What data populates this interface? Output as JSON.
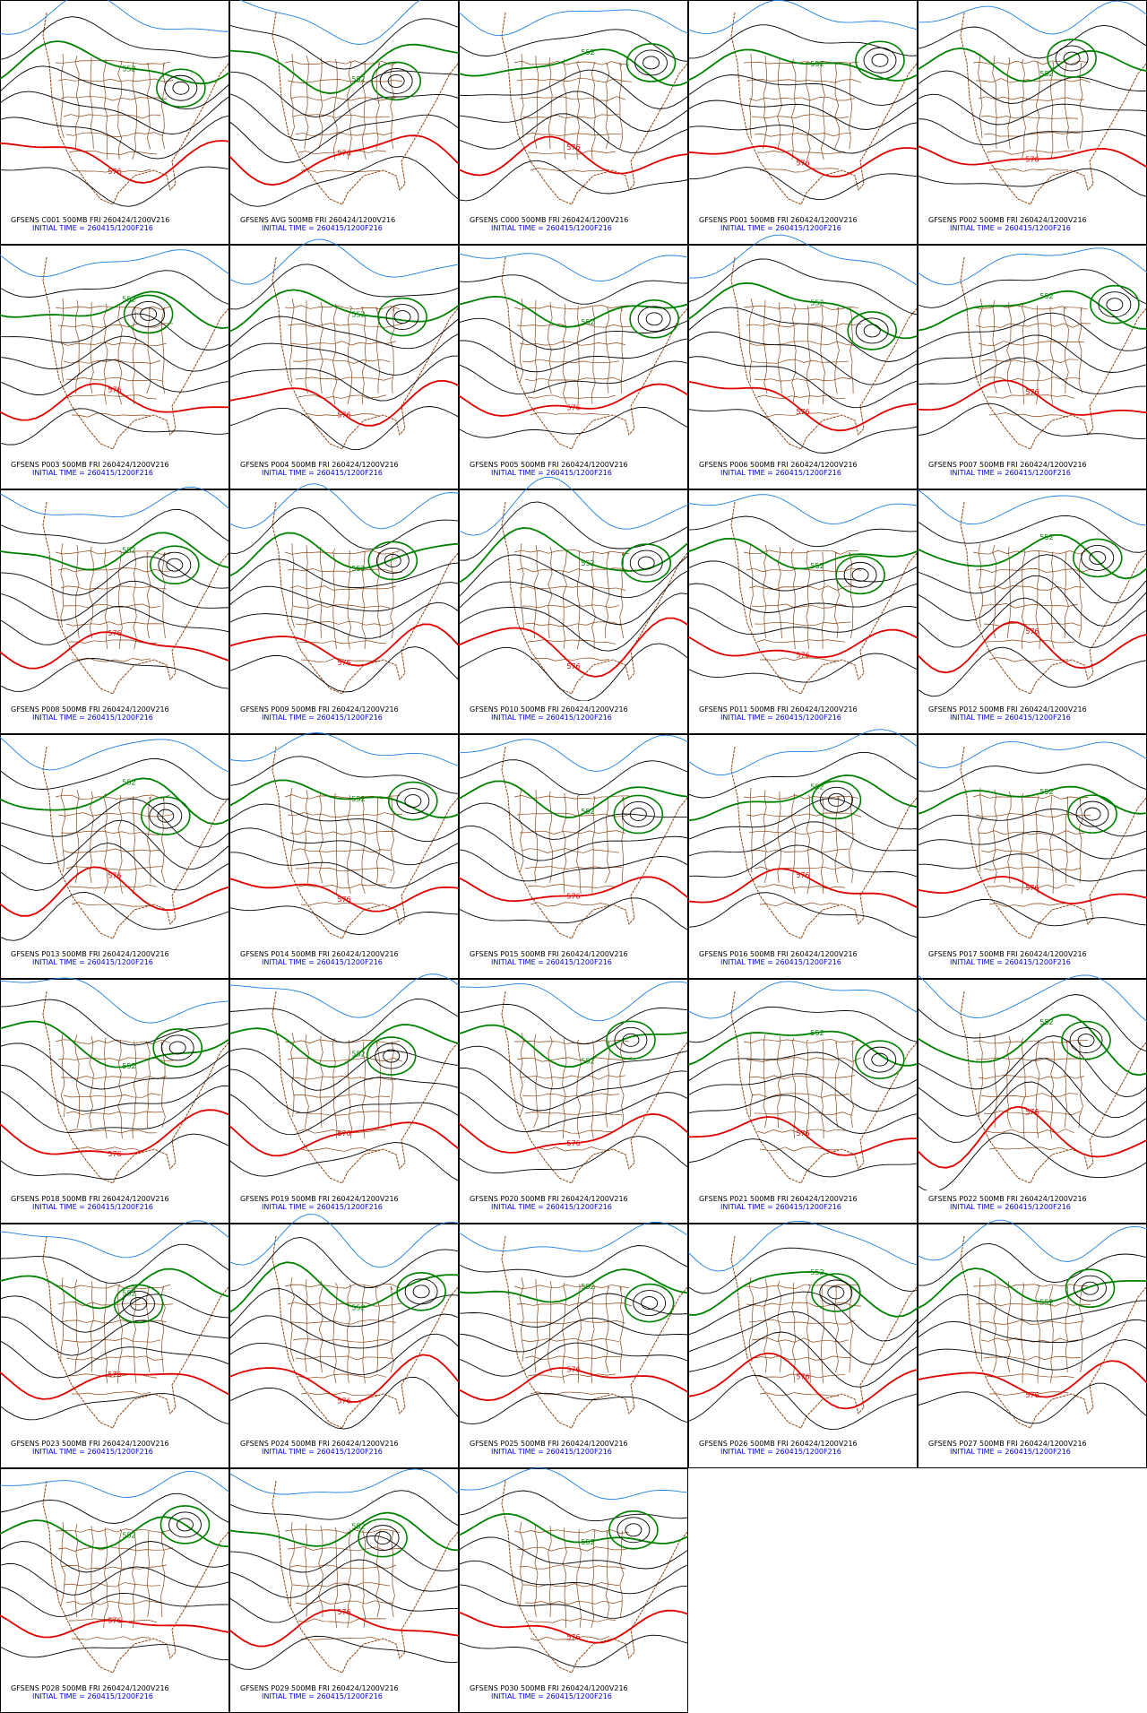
{
  "panels": [
    {
      "caption": "GFSENS C001 500MB FRI 260424/1200V216",
      "init": "INITIAL TIME = 260415/1200F216",
      "labels": [
        "552",
        "576"
      ]
    },
    {
      "caption": "GFSENS AVG 500MB FRI 260424/1200V216",
      "init": "INITIAL TIME = 260415/1200F216",
      "labels": [
        "552",
        "576"
      ]
    },
    {
      "caption": "GFSENS C000 500MB FRI 260424/1200V216",
      "init": "INITIAL TIME = 260415/1200F216",
      "labels": [
        "552",
        "576"
      ]
    },
    {
      "caption": "GFSENS P001 500MB FRI 260424/1200V216",
      "init": "INITIAL TIME = 260415/1200F216",
      "labels": [
        "552",
        "576"
      ]
    },
    {
      "caption": "GFSENS P002 500MB FRI 260424/1200V216",
      "init": "INITIAL TIME = 260415/1200F216",
      "labels": [
        "552",
        "576"
      ]
    },
    {
      "caption": "GFSENS P003 500MB FRI 260424/1200V216",
      "init": "INITIAL TIME = 260415/1200F216",
      "labels": [
        "552",
        "576"
      ]
    },
    {
      "caption": "GFSENS P004 500MB FRI 260424/1200V216",
      "init": "INITIAL TIME = 260415/1200F216",
      "labels": [
        "552",
        "576"
      ]
    },
    {
      "caption": "GFSENS P005 500MB FRI 260424/1200V216",
      "init": "INITIAL TIME = 260415/1200F216",
      "labels": [
        "552",
        "576"
      ]
    },
    {
      "caption": "GFSENS P006 500MB FRI 260424/1200V216",
      "init": "INITIAL TIME = 260415/1200F216",
      "labels": [
        "552",
        "576"
      ]
    },
    {
      "caption": "GFSENS P007 500MB FRI 260424/1200V216",
      "init": "INITIAL TIME = 260415/1200F216",
      "labels": [
        "552",
        "576"
      ]
    },
    {
      "caption": "GFSENS P008 500MB FRI 260424/1200V216",
      "init": "INITIAL TIME = 260415/1200F216",
      "labels": [
        "552",
        "576"
      ]
    },
    {
      "caption": "GFSENS P009 500MB FRI 260424/1200V216",
      "init": "INITIAL TIME = 260415/1200F216",
      "labels": [
        "552",
        "576"
      ]
    },
    {
      "caption": "GFSENS P010 500MB FRI 260424/1200V216",
      "init": "INITIAL TIME = 260415/1200F216",
      "labels": [
        "552",
        "576"
      ]
    },
    {
      "caption": "GFSENS P011 500MB FRI 260424/1200V216",
      "init": "INITIAL TIME = 260415/1200F216",
      "labels": [
        "552",
        "576"
      ]
    },
    {
      "caption": "GFSENS P012 500MB FRI 260424/1200V216",
      "init": "INITIAL TIME = 260415/1200F216",
      "labels": [
        "552",
        "576"
      ]
    },
    {
      "caption": "GFSENS P013 500MB FRI 260424/1200V216",
      "init": "INITIAL TIME = 260415/1200F216",
      "labels": [
        "552",
        "576"
      ]
    },
    {
      "caption": "GFSENS P014 500MB FRI 260424/1200V216",
      "init": "INITIAL TIME = 260415/1200F216",
      "labels": [
        "552",
        "576"
      ]
    },
    {
      "caption": "GFSENS P015 500MB FRI 260424/1200V216",
      "init": "INITIAL TIME = 260415/1200F216",
      "labels": [
        "552",
        "576"
      ]
    },
    {
      "caption": "GFSENS P016 500MB FRI 260424/1200V216",
      "init": "INITIAL TIME = 260415/1200F216",
      "labels": [
        "552",
        "576"
      ]
    },
    {
      "caption": "GFSENS P017 500MB FRI 260424/1200V216",
      "init": "INITIAL TIME = 260415/1200F216",
      "labels": [
        "552",
        "576"
      ]
    },
    {
      "caption": "GFSENS P018 500MB FRI 260424/1200V216",
      "init": "INITIAL TIME = 260415/1200F216",
      "labels": [
        "552",
        "576"
      ]
    },
    {
      "caption": "GFSENS P019 500MB FRI 260424/1200V216",
      "init": "INITIAL TIME = 260415/1200F216",
      "labels": [
        "552",
        "576"
      ]
    },
    {
      "caption": "GFSENS P020 500MB FRI 260424/1200V216",
      "init": "INITIAL TIME = 260415/1200F216",
      "labels": [
        "552",
        "576"
      ]
    },
    {
      "caption": "GFSENS P021 500MB FRI 260424/1200V216",
      "init": "INITIAL TIME = 260415/1200F216",
      "labels": [
        "552",
        "576"
      ]
    },
    {
      "caption": "GFSENS P022 500MB FRI 260424/1200V216",
      "init": "INITIAL TIME = 260415/1200F216",
      "labels": [
        "552",
        "576"
      ]
    },
    {
      "caption": "GFSENS P023 500MB FRI 260424/1200V216",
      "init": "INITIAL TIME = 260415/1200F216",
      "labels": [
        "552",
        "576"
      ]
    },
    {
      "caption": "GFSENS P024 500MB FRI 260424/1200V216",
      "init": "INITIAL TIME = 260415/1200F216",
      "labels": [
        "552",
        "576"
      ]
    },
    {
      "caption": "GFSENS P025 500MB FRI 260424/1200V216",
      "init": "INITIAL TIME = 260415/1200F216",
      "labels": [
        "552",
        "576"
      ]
    },
    {
      "caption": "GFSENS P026 500MB FRI 260424/1200V216",
      "init": "INITIAL TIME = 260415/1200F216",
      "labels": [
        "552",
        "576"
      ]
    },
    {
      "caption": "GFSENS P027 500MB FRI 260424/1200V216",
      "init": "INITIAL TIME = 260415/1200F216",
      "labels": [
        "552",
        "576"
      ]
    },
    {
      "caption": "GFSENS P028 500MB FRI 260424/1200V216",
      "init": "INITIAL TIME = 260415/1200F216",
      "labels": [
        "552",
        "576"
      ]
    },
    {
      "caption": "GFSENS P029 500MB FRI 260424/1200V216",
      "init": "INITIAL TIME = 260415/1200F216",
      "labels": [
        "552",
        "576"
      ]
    },
    {
      "caption": "GFSENS P030 500MB FRI 260424/1200V216",
      "init": "INITIAL TIME = 260415/1200F216",
      "labels": [
        "552",
        "576"
      ]
    }
  ]
}
